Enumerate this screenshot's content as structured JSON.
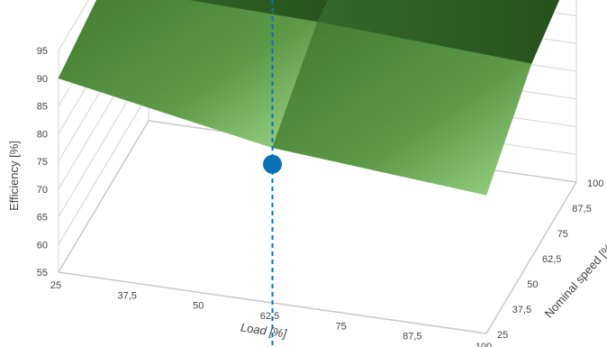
{
  "chart_data": {
    "type": "surface3d",
    "title": "",
    "x_axis": {
      "label": "Load [%]",
      "ticks": [
        "25",
        "37,5",
        "50",
        "62,5",
        "75",
        "87,5",
        "100"
      ],
      "range": [
        25,
        100
      ]
    },
    "y_axis": {
      "label": "Nominal speed [%]",
      "ticks": [
        "25",
        "37,5",
        "50",
        "62,5",
        "75",
        "87,5",
        "100"
      ],
      "range": [
        25,
        100
      ]
    },
    "z_axis": {
      "label": "Efficiency [%]",
      "ticks": [
        "55",
        "60",
        "65",
        "70",
        "75",
        "80",
        "85",
        "90",
        "95"
      ],
      "range": [
        55,
        95
      ]
    },
    "surface": {
      "load": [
        25,
        62.5,
        100
      ],
      "speed": [
        25,
        62.5,
        100
      ],
      "efficiency": [
        [
          90,
          93,
          95
        ],
        [
          83,
          92,
          95
        ],
        [
          80,
          90,
          95
        ]
      ]
    },
    "marker": {
      "load": 62.5,
      "speed": 25,
      "efficiency": 80
    },
    "reference_line": {
      "load": 62.5,
      "speed": 25
    },
    "colors": {
      "surface_dark": "#2e5a22",
      "surface_mid": "#4f8a3a",
      "surface_light": "#9ed88a",
      "marker": "#0a73b8",
      "reference_line": "#0a73b8",
      "grid": "#d4d4d4"
    },
    "grid": true
  }
}
